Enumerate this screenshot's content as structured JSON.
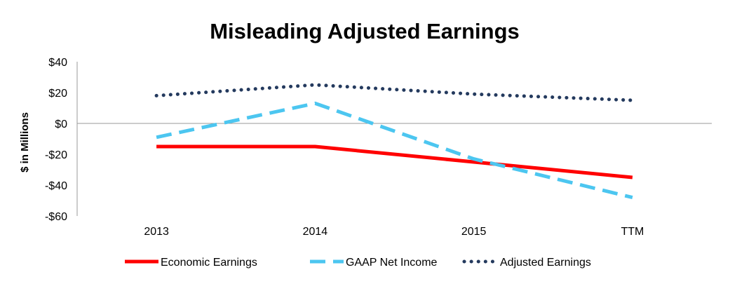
{
  "chart_data": {
    "type": "line",
    "title": "Misleading Adjusted Earnings",
    "xlabel": "",
    "ylabel": "$ in Millions",
    "categories": [
      "2013",
      "2014",
      "2015",
      "TTM"
    ],
    "ylim": [
      -60,
      40
    ],
    "yticks": [
      40,
      20,
      0,
      -20,
      -40,
      -60
    ],
    "ytick_labels": [
      "$40",
      "$20",
      "$0",
      "-$20",
      "-$40",
      "-$60"
    ],
    "grid": false,
    "legend_position": "bottom",
    "series": [
      {
        "name": "Economic Earnings",
        "values": [
          -15,
          -15,
          -25,
          -35
        ],
        "color": "#ff0000",
        "style": "solid"
      },
      {
        "name": "GAAP Net Income",
        "values": [
          -9,
          13,
          -23,
          -48
        ],
        "color": "#4cc6f0",
        "style": "dashed"
      },
      {
        "name": "Adjusted Earnings",
        "values": [
          18,
          25,
          19,
          15
        ],
        "color": "#243a5e",
        "style": "dotted"
      }
    ]
  }
}
